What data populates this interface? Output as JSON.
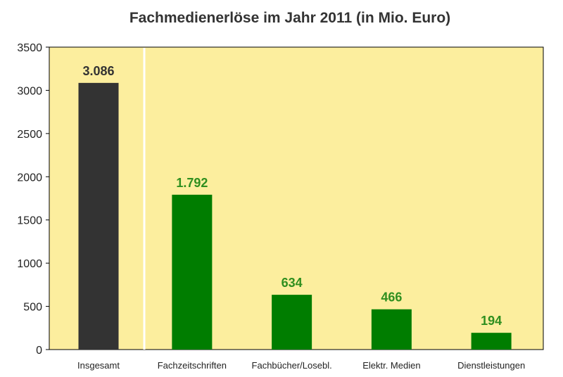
{
  "chart_data": {
    "type": "bar",
    "title": "Fachmedienerlöse im Jahr 2011 (in Mio. Euro)",
    "xlabel": "",
    "ylabel": "",
    "ylim": [
      0,
      3500
    ],
    "yticks": [
      0,
      500,
      1000,
      1500,
      2000,
      2500,
      3000,
      3500
    ],
    "categories": [
      "Insgesamt",
      "Fachzeitschriften",
      "Fachbücher/Losebl.",
      "Elektr. Medien",
      "Dienstleistungen"
    ],
    "values": [
      3086,
      1792,
      634,
      466,
      194
    ],
    "value_labels": [
      "3.086",
      "1.792",
      "634",
      "466",
      "194"
    ],
    "grid": false,
    "legend": "none",
    "colors": {
      "background": "#fcee9e",
      "total_bar": "#333333",
      "total_label": "#333333",
      "segment_bar": "#007d00",
      "segment_label": "#2f8f1f",
      "separator": "#ffffff"
    }
  }
}
